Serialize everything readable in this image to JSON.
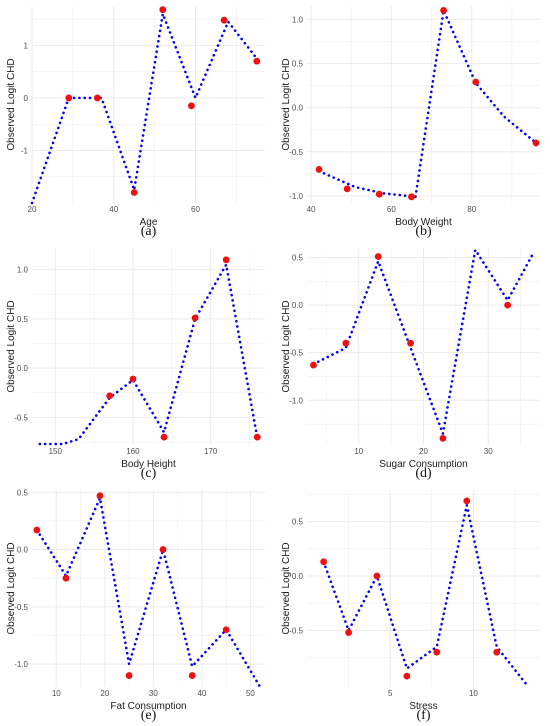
{
  "chart_data": [
    {
      "id": "a",
      "type": "scatter",
      "caption": "(a)",
      "xlabel": "Age",
      "ylabel": "Observed Logit CHD",
      "xlim": [
        20,
        77
      ],
      "ylim": [
        -2.0,
        1.75
      ],
      "xticks": [
        20,
        40,
        60
      ],
      "yticks": [
        -1,
        0,
        1
      ],
      "series": [
        {
          "kind": "fitted-line",
          "x": [
            20,
            29,
            37,
            45,
            52,
            60,
            68,
            76
          ],
          "y": [
            -2.0,
            0.0,
            0.0,
            -1.75,
            1.6,
            0.0,
            1.45,
            0.65
          ]
        },
        {
          "kind": "observed-points",
          "x": [
            29,
            36,
            45,
            52,
            59,
            67,
            75
          ],
          "y": [
            0.0,
            0.0,
            -1.8,
            1.68,
            -0.15,
            1.48,
            0.7
          ]
        }
      ]
    },
    {
      "id": "b",
      "type": "scatter",
      "caption": "(b)",
      "xlabel": "Body Weight",
      "ylabel": "Observed Logit CHD",
      "xlim": [
        39,
        97
      ],
      "ylim": [
        -1.08,
        1.15
      ],
      "xticks": [
        40,
        60,
        80
      ],
      "yticks": [
        -1.0,
        -0.5,
        0.0,
        0.5,
        1.0
      ],
      "ytick_labels": [
        "-1.0",
        "-0.5",
        "0.0",
        "0.5",
        "1.0"
      ],
      "series": [
        {
          "kind": "fitted-line",
          "x": [
            42,
            51,
            58,
            66,
            73,
            81,
            88,
            96
          ],
          "y": [
            -0.72,
            -0.9,
            -0.97,
            -1.01,
            1.1,
            0.28,
            -0.1,
            -0.4
          ]
        },
        {
          "kind": "observed-points",
          "x": [
            42,
            49,
            57,
            65,
            73,
            81,
            96
          ],
          "y": [
            -0.7,
            -0.92,
            -0.98,
            -1.01,
            1.1,
            0.29,
            -0.4
          ]
        }
      ]
    },
    {
      "id": "c",
      "type": "scatter",
      "caption": "(c)",
      "xlabel": "Body Height",
      "ylabel": "Observed Logit CHD",
      "xlim": [
        147,
        177
      ],
      "ylim": [
        -0.78,
        1.22
      ],
      "xticks": [
        150,
        160,
        170
      ],
      "yticks": [
        -0.5,
        0.0,
        0.5,
        1.0
      ],
      "ytick_labels": [
        "-0.5",
        "0.0",
        "0.5",
        "1.0"
      ],
      "series": [
        {
          "kind": "fitted-line",
          "x": [
            148,
            151,
            153,
            157,
            160,
            164,
            168,
            172,
            176
          ],
          "y": [
            -0.77,
            -0.77,
            -0.72,
            -0.3,
            -0.12,
            -0.65,
            0.5,
            1.05,
            -0.7
          ]
        },
        {
          "kind": "observed-points",
          "x": [
            157,
            160,
            164,
            168,
            172,
            176
          ],
          "y": [
            -0.28,
            -0.11,
            -0.7,
            0.51,
            1.1,
            -0.7
          ]
        }
      ]
    },
    {
      "id": "d",
      "type": "scatter",
      "caption": "(d)",
      "xlabel": "Sugar Consumption",
      "ylabel": "Observed Logit CHD",
      "xlim": [
        2,
        38
      ],
      "ylim": [
        -1.47,
        0.6
      ],
      "xticks": [
        10,
        20,
        30
      ],
      "yticks": [
        -1.0,
        -0.5,
        0.0,
        0.5
      ],
      "ytick_labels": [
        "-1.0",
        "-0.5",
        "0.0",
        "0.5"
      ],
      "series": [
        {
          "kind": "fitted-line",
          "x": [
            3,
            8,
            13,
            18,
            23,
            28,
            33,
            37
          ],
          "y": [
            -0.62,
            -0.45,
            0.46,
            -0.45,
            -1.35,
            0.58,
            0.05,
            0.55
          ]
        },
        {
          "kind": "observed-points",
          "x": [
            3,
            8,
            13,
            18,
            23,
            33
          ],
          "y": [
            -0.63,
            -0.4,
            0.51,
            -0.4,
            -1.4,
            0.0
          ]
        }
      ]
    },
    {
      "id": "e",
      "type": "scatter",
      "caption": "(e)",
      "xlabel": "Fat Consumption",
      "ylabel": "Observed Logit CHD",
      "xlim": [
        5,
        53
      ],
      "ylim": [
        -1.2,
        0.52
      ],
      "xticks": [
        10,
        20,
        30,
        40,
        50
      ],
      "yticks": [
        -1.0,
        -0.5,
        0.0,
        0.5
      ],
      "ytick_labels": [
        "-1.0",
        "-0.5",
        "0.0",
        "0.5"
      ],
      "series": [
        {
          "kind": "fitted-line",
          "x": [
            6,
            12,
            19,
            25,
            32,
            38,
            45,
            52
          ],
          "y": [
            0.17,
            -0.23,
            0.45,
            -1.0,
            0.0,
            -1.02,
            -0.7,
            -1.2
          ]
        },
        {
          "kind": "observed-points",
          "x": [
            6,
            12,
            19,
            25,
            32,
            38,
            45
          ],
          "y": [
            0.17,
            -0.25,
            0.47,
            -1.1,
            0.0,
            -1.1,
            -0.7
          ]
        }
      ]
    },
    {
      "id": "f",
      "type": "scatter",
      "caption": "(f)",
      "xlabel": "Stress",
      "ylabel": "Observed Logit CHD",
      "xlim": [
        0,
        14
      ],
      "ylim": [
        -1.02,
        0.79
      ],
      "xticks": [
        5,
        10
      ],
      "yticks": [
        -0.5,
        0.0,
        0.5
      ],
      "ytick_labels": [
        "-0.5",
        "0.0",
        "0.5"
      ],
      "series": [
        {
          "kind": "fitted-line",
          "x": [
            1,
            2.5,
            4.2,
            6,
            7.8,
            9.6,
            11.4,
            13.2
          ],
          "y": [
            0.13,
            -0.5,
            0.0,
            -0.85,
            -0.65,
            0.65,
            -0.65,
            -1.0
          ]
        },
        {
          "kind": "observed-points",
          "x": [
            1,
            2.5,
            4.2,
            6,
            7.8,
            9.6,
            11.4
          ],
          "y": [
            0.13,
            -0.52,
            0.0,
            -0.92,
            -0.7,
            0.69,
            -0.7
          ]
        }
      ]
    }
  ],
  "colors": {
    "line": "#0000ee",
    "point": "#ee1111",
    "grid": "#ebebeb",
    "text": "#4d4d4d"
  }
}
